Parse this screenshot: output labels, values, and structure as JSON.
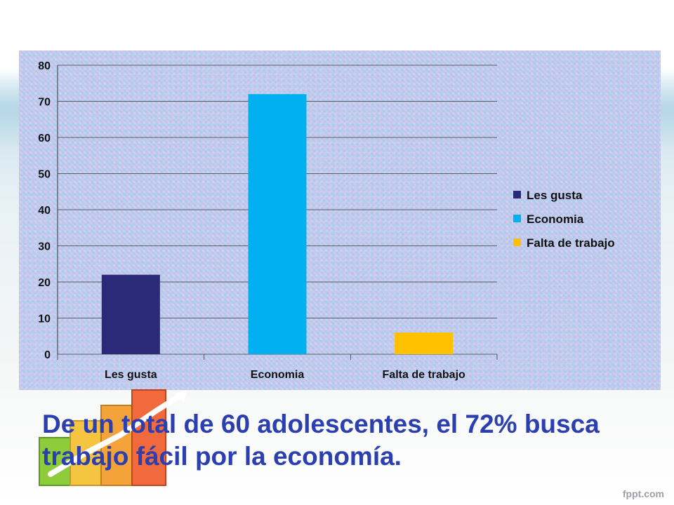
{
  "chart_data": {
    "type": "bar",
    "categories": [
      "Les gusta",
      "Economia",
      "Falta de trabajo"
    ],
    "series": [
      {
        "name": "Les gusta",
        "category": "Les gusta",
        "value": 22,
        "color": "#2a2a78"
      },
      {
        "name": "Economia",
        "category": "Economia",
        "value": 72,
        "color": "#00b0f0"
      },
      {
        "name": "Falta de trabajo",
        "category": "Falta de trabajo",
        "value": 6,
        "color": "#ffc000"
      }
    ],
    "ylim": [
      0,
      80
    ],
    "yticks": [
      0,
      10,
      20,
      30,
      40,
      50,
      60,
      70,
      80
    ],
    "grid": true,
    "legend": "right",
    "title": "",
    "xlabel": "",
    "ylabel": ""
  },
  "caption": "De un total de 60 adolescentes, el 72% busca trabajo fácil por la economía.",
  "footer_brand": "fppt.com",
  "colors": {
    "caption": "#2b3fb0",
    "panel": "#b6c8ec"
  }
}
